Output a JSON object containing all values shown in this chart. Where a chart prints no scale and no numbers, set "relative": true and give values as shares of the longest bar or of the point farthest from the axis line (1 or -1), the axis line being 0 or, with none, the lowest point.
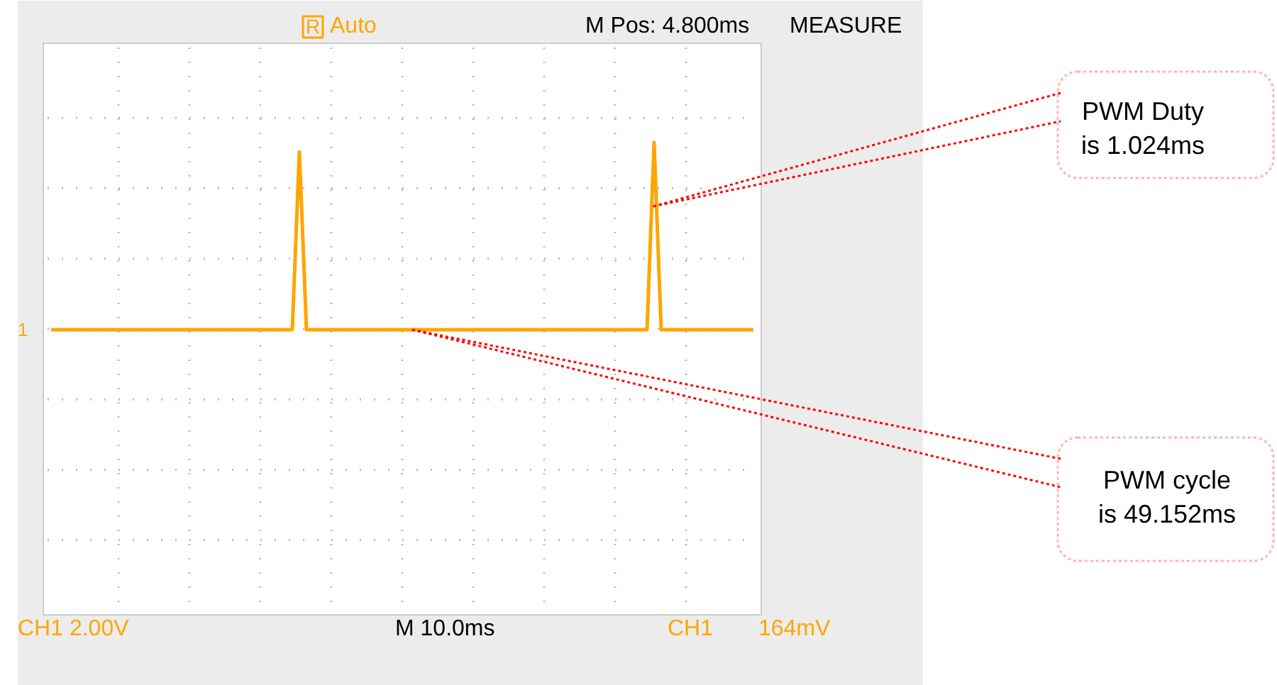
{
  "chart_data": {
    "type": "line",
    "relative": true,
    "grid": true,
    "marker": "none",
    "line_style": "solid",
    "categories": [
      null,
      null,
      null,
      null,
      null,
      null,
      null,
      null,
      null,
      null,
      null,
      null,
      null,
      null,
      null,
      null,
      null,
      null,
      null,
      null,
      null,
      null,
      null,
      null,
      null,
      null,
      null,
      null,
      null,
      null,
      null,
      null,
      null,
      null,
      null,
      null,
      null,
      null,
      null,
      null,
      null,
      null,
      null,
      null,
      null,
      null,
      null,
      null,
      null,
      null,
      null,
      null,
      null,
      null,
      null,
      null,
      null,
      null,
      null,
      null,
      null,
      null,
      null,
      null,
      null,
      null,
      null,
      null,
      null,
      null,
      null,
      null,
      null,
      null,
      null,
      null,
      null,
      null,
      null,
      null,
      null,
      null,
      null,
      null,
      null,
      null,
      null,
      null,
      null,
      null,
      null,
      null,
      null,
      null,
      null,
      null,
      null,
      null,
      null,
      null
    ],
    "series": [
      {
        "color": "#ffa500",
        "values": [
          0,
          0,
          0,
          0,
          0,
          0,
          0,
          0,
          0,
          0,
          0,
          0,
          0,
          0,
          0,
          0,
          0,
          0,
          0,
          0,
          0,
          0,
          0,
          0,
          0,
          0,
          0,
          0,
          0,
          0,
          0,
          0,
          0,
          0,
          0,
          0.95,
          0,
          0,
          0,
          0,
          0,
          0,
          0,
          0,
          0,
          0,
          0,
          0,
          0,
          0,
          0,
          0,
          0,
          0,
          0,
          0,
          0,
          0,
          0,
          0,
          0,
          0,
          0,
          0,
          0,
          0,
          0,
          0,
          0,
          0,
          0,
          0,
          0,
          0,
          0,
          0,
          0,
          0,
          0,
          0,
          0,
          0,
          0,
          0,
          0,
          1,
          0,
          0,
          0,
          0,
          0,
          0,
          0,
          0,
          0,
          0,
          0,
          0,
          0,
          0
        ]
      }
    ],
    "annotations": [
      "R",
      "Auto",
      "M Pos: 4.800ms",
      "MEASURE",
      "CH1  2.00V",
      "M 10.0ms",
      "CH1",
      "164mV",
      "1",
      "PWM Duty\nis 1.024ms",
      "PWM cycle\nis 49.152ms"
    ]
  }
}
